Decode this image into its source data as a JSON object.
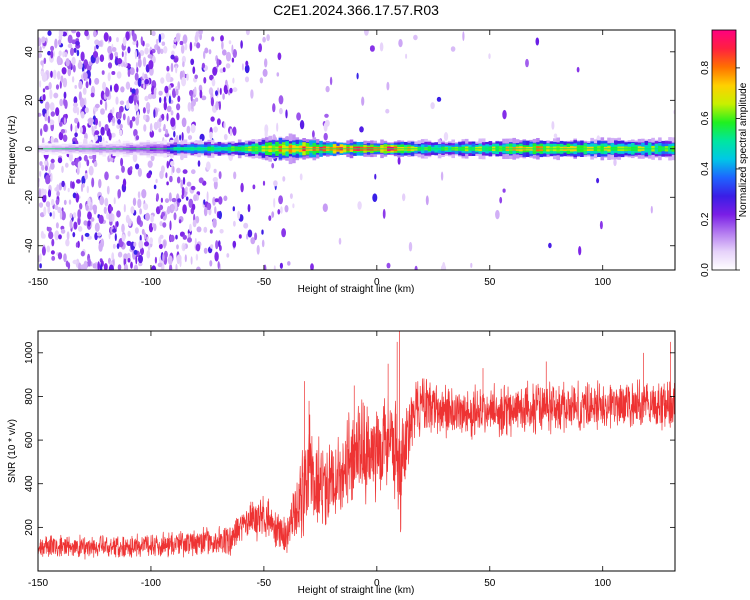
{
  "figure_title": "C2E1.2024.366.17.57.R03",
  "colors": {
    "snr_line": "#ee3333",
    "axis": "#000000",
    "background": "#ffffff",
    "colormap": [
      "#ffffff",
      "#e6d2fa",
      "#b47cf0",
      "#7a1ee6",
      "#3a1ee6",
      "#1e64ff",
      "#00c8e6",
      "#00e6a0",
      "#20f020",
      "#c8f000",
      "#ffd000",
      "#ff7000",
      "#ff2040",
      "#ff0080"
    ]
  },
  "chart_data": [
    {
      "type": "heatmap",
      "title": "",
      "xlabel": "Height of straight line (km)",
      "ylabel": "Frequency (Hz)",
      "xlim": [
        -150,
        132
      ],
      "ylim": [
        -50,
        49
      ],
      "xticks": [
        -150,
        -100,
        -50,
        0,
        50,
        100
      ],
      "yticks": [
        -40,
        -20,
        0,
        20,
        40
      ],
      "grid": false,
      "colorbar": {
        "label": "Normalized spectral amplitude",
        "range": [
          0,
          0.95
        ],
        "ticks": [
          0.0,
          0.2,
          0.4,
          0.6,
          0.8
        ]
      },
      "band": {
        "center_hz": 0,
        "halfwidth_hz": [
          [
            -150,
            2
          ],
          [
            -95,
            3
          ],
          [
            -60,
            3
          ],
          [
            -40,
            5
          ],
          [
            -20,
            3
          ],
          [
            0,
            3
          ],
          [
            132,
            4
          ]
        ],
        "peak_amplitude": [
          [
            -150,
            0.1
          ],
          [
            -95,
            0.2
          ],
          [
            -90,
            0.45
          ],
          [
            -75,
            0.5
          ],
          [
            -60,
            0.6
          ],
          [
            -42,
            0.72
          ],
          [
            -30,
            0.8
          ],
          [
            -15,
            0.85
          ],
          [
            0,
            0.78
          ],
          [
            5,
            0.88
          ],
          [
            20,
            0.55
          ],
          [
            50,
            0.6
          ],
          [
            60,
            0.72
          ],
          [
            90,
            0.68
          ],
          [
            132,
            0.55
          ]
        ]
      },
      "scatter_region": {
        "x": [
          -150,
          -40
        ],
        "density_x": [
          [
            -150,
            0.65
          ],
          [
            -90,
            0.6
          ],
          [
            -70,
            0.5
          ],
          [
            -66,
            0.22
          ],
          [
            -50,
            0.12
          ],
          [
            -42,
            0.2
          ],
          [
            -38,
            0.03
          ],
          [
            132,
            0.01
          ]
        ]
      }
    },
    {
      "type": "line",
      "title": "",
      "xlabel": "Height of straight line (km)",
      "ylabel": "SNR (10 * v/v)",
      "xlim": [
        -150,
        132
      ],
      "ylim": [
        0,
        1100
      ],
      "xticks": [
        -150,
        -100,
        -50,
        0,
        50,
        100
      ],
      "yticks": [
        200,
        400,
        600,
        800,
        1000
      ],
      "grid": false,
      "series": [
        {
          "envelope_x": [
            -150,
            -120,
            -100,
            -80,
            -65,
            -58,
            -50,
            -40,
            -35,
            -30,
            -25,
            -20,
            -10,
            0,
            5,
            8,
            10,
            12,
            15,
            20,
            30,
            40,
            60,
            80,
            100,
            120,
            132
          ],
          "envelope_mean": [
            110,
            110,
            120,
            130,
            140,
            230,
            250,
            150,
            300,
            450,
            380,
            420,
            520,
            560,
            600,
            560,
            350,
            560,
            700,
            760,
            740,
            720,
            740,
            750,
            760,
            760,
            770
          ],
          "envelope_spread": [
            90,
            90,
            90,
            100,
            110,
            160,
            160,
            130,
            300,
            400,
            360,
            380,
            400,
            380,
            380,
            450,
            500,
            400,
            250,
            200,
            200,
            190,
            190,
            190,
            190,
            190,
            200
          ],
          "spikes": [
            [
              10,
              1100
            ],
            [
              9,
              1050
            ],
            [
              5,
              950
            ],
            [
              -32,
              870
            ],
            [
              -30,
              780
            ],
            [
              -10,
              850
            ],
            [
              47,
              930
            ],
            [
              75,
              960
            ],
            [
              118,
              1000
            ],
            [
              130,
              1050
            ]
          ]
        }
      ]
    }
  ]
}
